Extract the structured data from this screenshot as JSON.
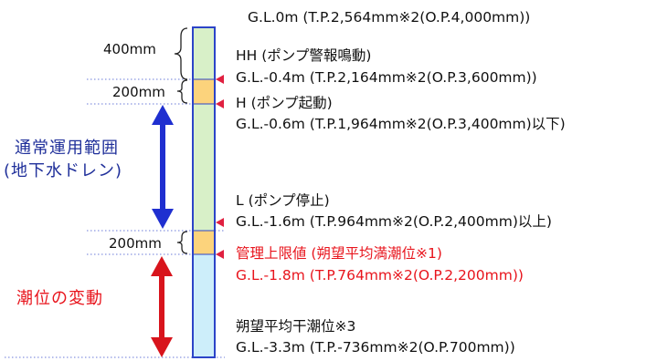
{
  "levels": [
    {
      "name": "Level: 0 m",
      "line1": "",
      "line2": "G.L.0m (T.P.2,564mm※2(O.P.4,000mm))",
      "color": "#111111"
    },
    {
      "name": "HH: pump alarm",
      "line1": "HH (ポンプ警報鳴動)",
      "line2": "G.L.-0.4m (T.P.2,164mm※2(O.P.3,600mm))",
      "color": "#111111"
    },
    {
      "name": "H: pump start",
      "line1": "H (ポンプ起動)",
      "line2": "G.L.-0.6m (T.P.1,964mm※2(O.P.3,400mm)以下)",
      "color": "#111111"
    },
    {
      "name": "L: pump stop",
      "line1": "L (ポンプ停止)",
      "line2": "G.L.-1.6m (T.P.964mm※2(O.P.2,400mm)以上)",
      "color": "#111111"
    },
    {
      "name": "Management upper limit",
      "line1": "管理上限値 (朔望平均満潮位※1)",
      "line2": "G.L.-1.8m (T.P.764mm※2(O.P.2,200mm))",
      "color": "#e8141c"
    },
    {
      "name": "Mean low water spring",
      "line1": "朔望平均干潮位※3",
      "line2": "G.L.-3.3m (T.P.-736mm※2(O.P.700mm))",
      "color": "#111111"
    }
  ],
  "dimensions": {
    "gap_400": "400mm",
    "gap_200_top": "200mm",
    "gap_200_bottom": "200mm"
  },
  "ranges": {
    "normal_line1": "通常運用範囲",
    "normal_line2": "(地下水ドレン)",
    "normal_color": "#1f2f9a",
    "tidal": "潮位の変動",
    "tidal_color": "#e8141c"
  },
  "column_colors": {
    "green": "#d8f0c8",
    "yellow": "#fcd37c",
    "blue": "#cdeefa",
    "border": "#2c44c8",
    "marker": "#e02040",
    "normal_arrow": "#1f2fd0",
    "tidal_arrow": "#d8141c"
  }
}
